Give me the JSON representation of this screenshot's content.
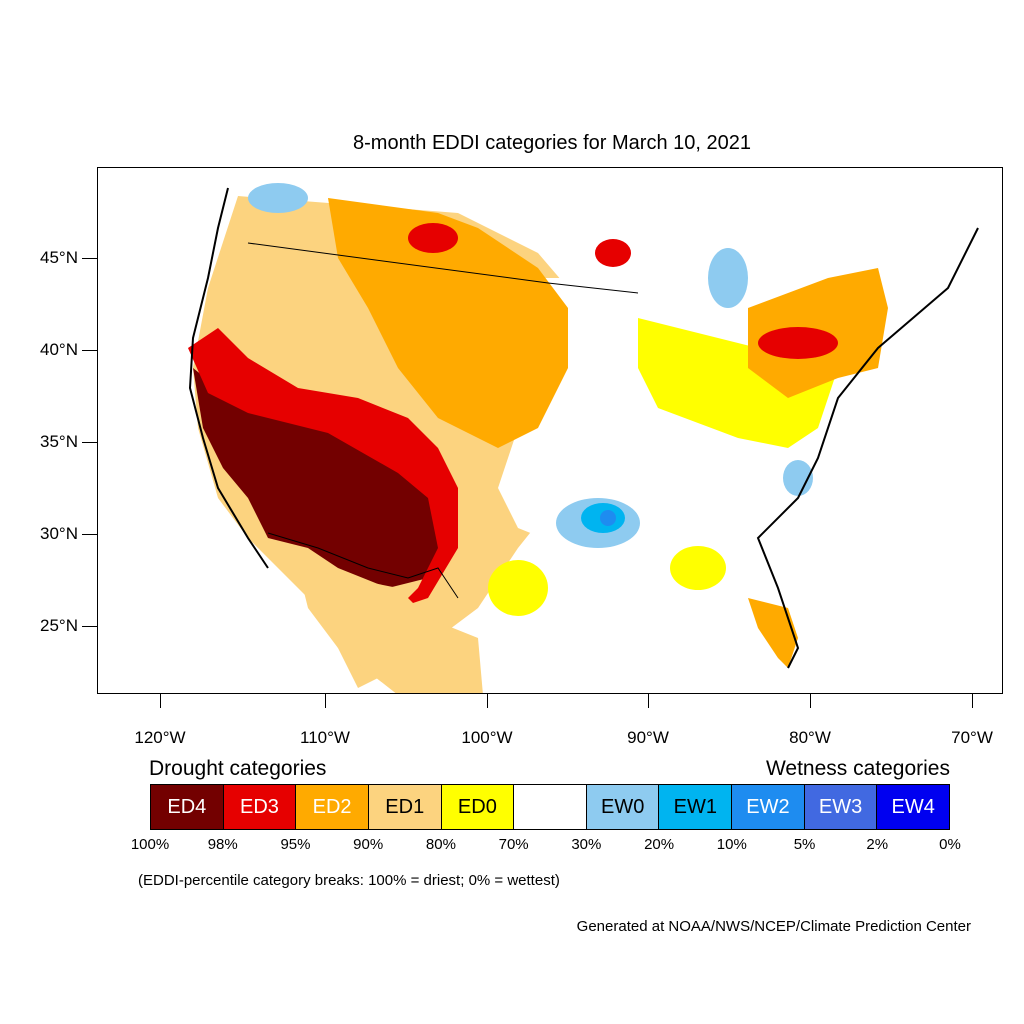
{
  "title": "8-month EDDI categories for March 10, 2021",
  "lat_axis": [
    "45°N",
    "40°N",
    "35°N",
    "30°N",
    "25°N"
  ],
  "lon_axis": [
    "120°W",
    "110°W",
    "100°W",
    "90°W",
    "80°W",
    "70°W"
  ],
  "legend": {
    "drought_heading": "Drought categories",
    "wetness_heading": "Wetness categories",
    "categories": [
      {
        "label": "ED4",
        "color": "#730000",
        "text_color": "#ffffff"
      },
      {
        "label": "ED3",
        "color": "#e60000",
        "text_color": "#ffffff"
      },
      {
        "label": "ED2",
        "color": "#ffaa00",
        "text_color": "#ffffff"
      },
      {
        "label": "ED1",
        "color": "#fcd37f",
        "text_color": "#000000"
      },
      {
        "label": "ED0",
        "color": "#ffff00",
        "text_color": "#000000"
      },
      {
        "label": "",
        "color": "#ffffff",
        "text_color": "#000000"
      },
      {
        "label": "EW0",
        "color": "#8ecbf0",
        "text_color": "#000000"
      },
      {
        "label": "EW1",
        "color": "#00b4f0",
        "text_color": "#000000"
      },
      {
        "label": "EW2",
        "color": "#1e8cf0",
        "text_color": "#ffffff"
      },
      {
        "label": "EW3",
        "color": "#4169e1",
        "text_color": "#ffffff"
      },
      {
        "label": "EW4",
        "color": "#0000f0",
        "text_color": "#ffffff"
      }
    ],
    "breaks": [
      "100%",
      "98%",
      "95%",
      "90%",
      "80%",
      "70%",
      "30%",
      "20%",
      "10%",
      "5%",
      "2%",
      "0%"
    ]
  },
  "note": "(EDDI-percentile category breaks: 100% = driest; 0% = wettest)",
  "credit": "Generated at NOAA/NWS/NCEP/Climate Prediction Center"
}
